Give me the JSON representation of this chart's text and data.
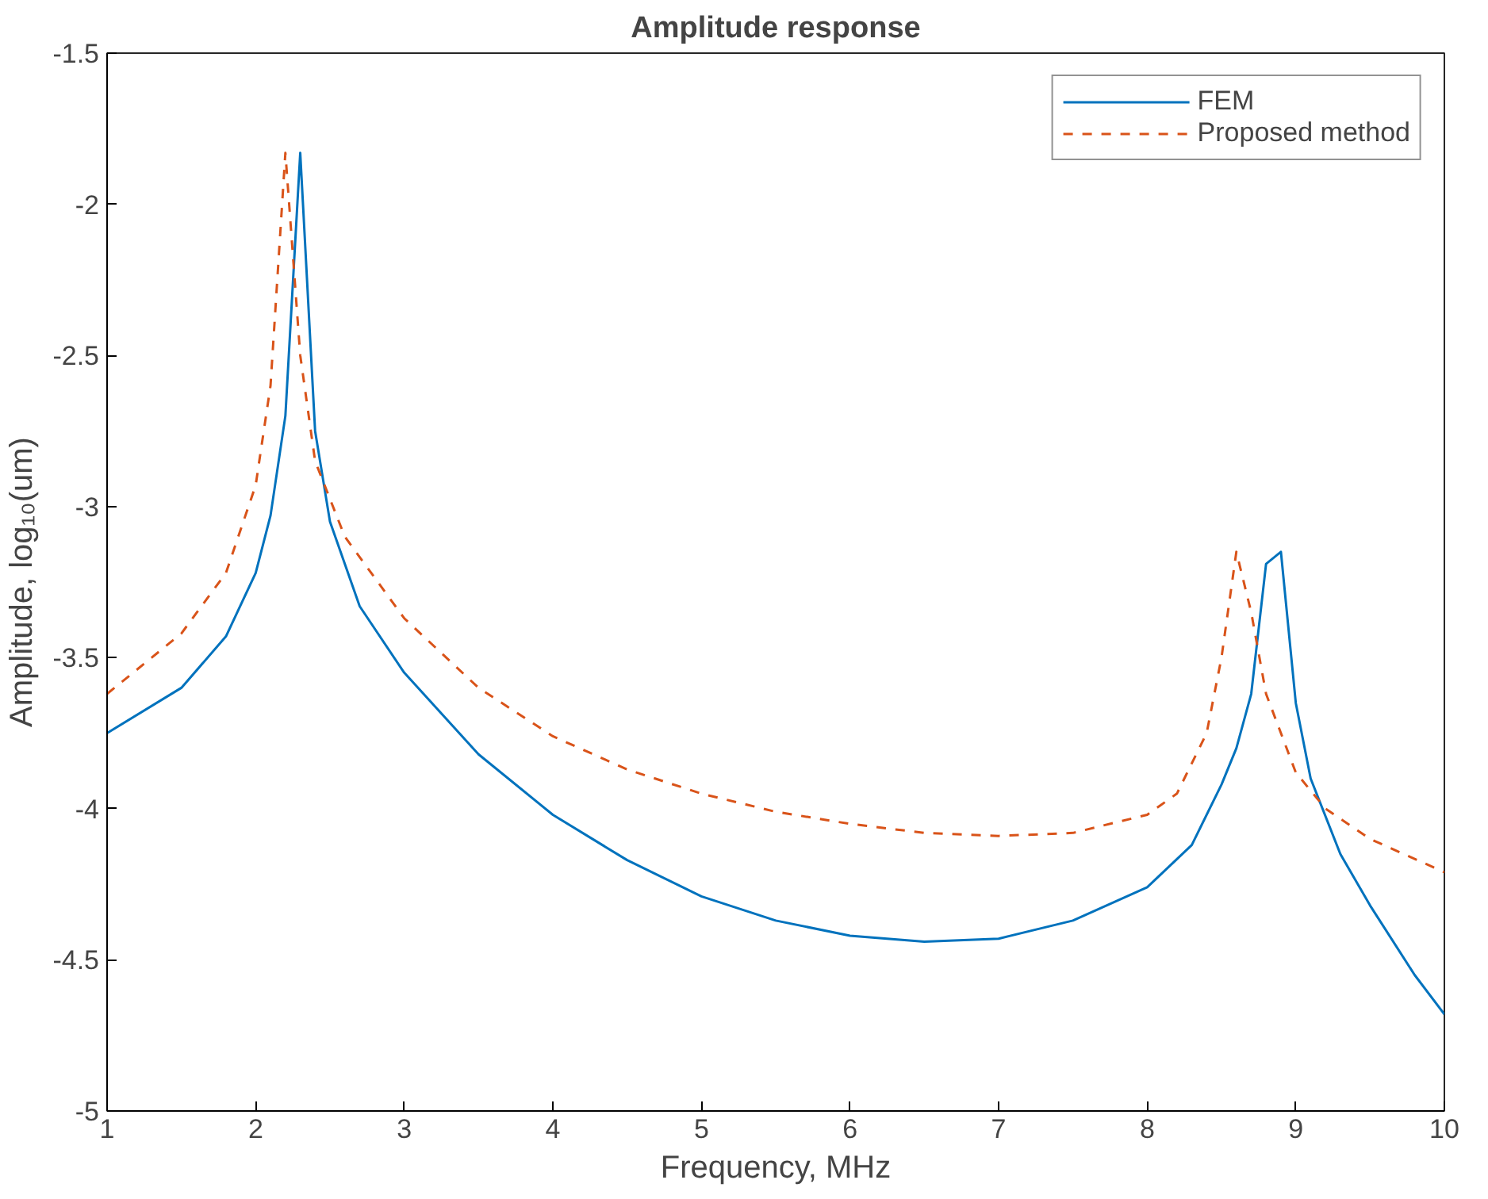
{
  "chart_data": {
    "type": "line",
    "title": "Amplitude response",
    "xlabel": "Frequency, MHz",
    "ylabel": "Amplitude, log₁₀(um)",
    "xlim": [
      1,
      10
    ],
    "xticks": [
      1,
      2,
      3,
      4,
      5,
      6,
      7,
      8,
      9,
      10
    ],
    "ylim": [
      -5,
      -1.5
    ],
    "yticks": [
      -5,
      -4.5,
      -4,
      -3.5,
      -3,
      -2.5,
      -2,
      -1.5
    ],
    "grid": false,
    "legend": "top right",
    "marker": "none",
    "series": [
      {
        "name": "FEM",
        "color": "#0072bd",
        "line_style": "solid",
        "x": [
          1,
          1.5,
          1.8,
          2.0,
          2.1,
          2.2,
          2.3,
          2.4,
          2.5,
          2.7,
          3,
          3.5,
          4,
          4.5,
          5,
          5.5,
          6,
          6.5,
          7,
          7.5,
          8,
          8.3,
          8.5,
          8.6,
          8.7,
          8.8,
          8.9,
          9.0,
          9.1,
          9.3,
          9.5,
          9.8,
          10
        ],
        "values": [
          -3.75,
          -3.6,
          -3.43,
          -3.22,
          -3.03,
          -2.7,
          -1.83,
          -2.75,
          -3.05,
          -3.33,
          -3.55,
          -3.82,
          -4.02,
          -4.17,
          -4.29,
          -4.37,
          -4.42,
          -4.44,
          -4.43,
          -4.37,
          -4.26,
          -4.12,
          -3.92,
          -3.8,
          -3.62,
          -3.19,
          -3.15,
          -3.65,
          -3.9,
          -4.15,
          -4.32,
          -4.55,
          -4.68
        ]
      },
      {
        "name": "Proposed method",
        "color": "#d95319",
        "line_style": "dashed",
        "x": [
          1,
          1.5,
          1.8,
          2.0,
          2.1,
          2.2,
          2.3,
          2.4,
          2.6,
          3,
          3.5,
          4,
          4.5,
          5,
          5.5,
          6,
          6.5,
          7,
          7.5,
          8,
          8.2,
          8.4,
          8.5,
          8.6,
          8.7,
          8.8,
          9.0,
          9.2,
          9.5,
          10
        ],
        "values": [
          -3.62,
          -3.42,
          -3.22,
          -2.93,
          -2.6,
          -1.83,
          -2.5,
          -2.85,
          -3.1,
          -3.37,
          -3.6,
          -3.76,
          -3.87,
          -3.95,
          -4.01,
          -4.05,
          -4.08,
          -4.09,
          -4.08,
          -4.02,
          -3.95,
          -3.75,
          -3.5,
          -3.15,
          -3.35,
          -3.62,
          -3.88,
          -4.0,
          -4.1,
          -4.21
        ]
      }
    ]
  }
}
